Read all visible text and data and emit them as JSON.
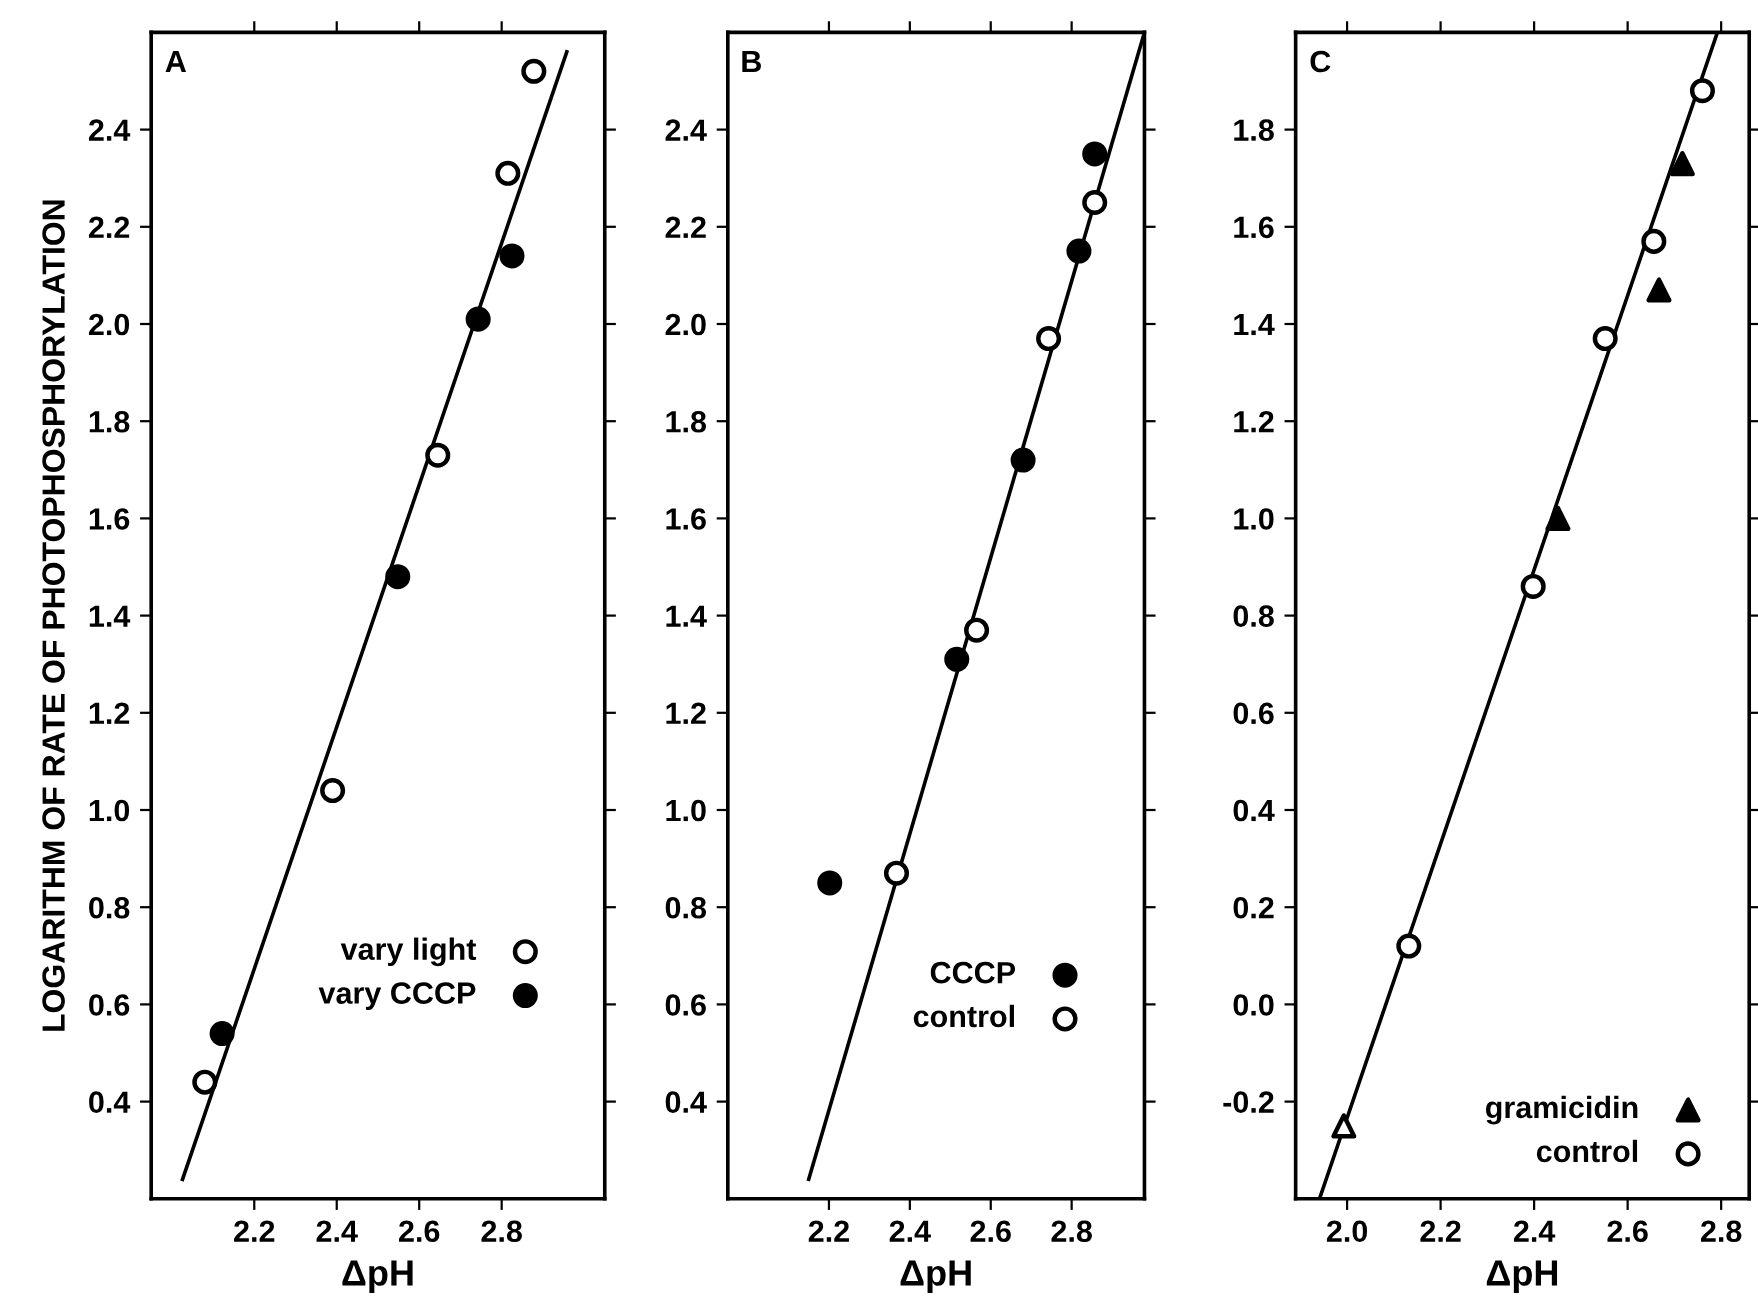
{
  "chart_data": [
    {
      "type": "scatter",
      "title": "A",
      "xlabel": "ΔpH",
      "ylabel": "LOGARITHM OF RATE OF PHOTOPHOSPHORYLATION",
      "xlim": [
        1.95,
        3.05
      ],
      "ylim": [
        0.2,
        2.6
      ],
      "xticks": [
        2.2,
        2.4,
        2.6,
        2.8
      ],
      "yticks": [
        0.4,
        0.6,
        0.8,
        {
          "value": 1.0,
          "label": "1.0"
        },
        1.2,
        1.4,
        1.6,
        1.8,
        {
          "value": 2.0,
          "label": "2.0"
        },
        2.2,
        2.4
      ],
      "legend": "bottom right",
      "grid": false,
      "series": [
        {
          "name": "vary light",
          "color": "#ffffff",
          "marker": "circle",
          "x": [
            2.08,
            2.39,
            2.645,
            2.815,
            2.878
          ],
          "values": [
            0.44,
            1.04,
            1.73,
            2.31,
            2.52
          ]
        },
        {
          "name": "vary CCCP",
          "color": "#000000",
          "marker": "circle",
          "x": [
            2.122,
            2.548,
            2.743,
            2.825
          ],
          "values": [
            0.54,
            1.48,
            2.01,
            2.14
          ]
        },
        {
          "type": "line",
          "color": "#000000",
          "marker": "none",
          "line_style": "solid",
          "x": [
            2.026,
            2.958
          ],
          "values": [
            0.24,
            2.56
          ]
        }
      ]
    },
    {
      "type": "scatter",
      "title": "B",
      "xlabel": "ΔpH",
      "xlim": [
        1.95,
        2.98
      ],
      "ylim": [
        0.2,
        2.6
      ],
      "xticks": [
        2.2,
        2.4,
        2.6,
        2.8
      ],
      "yticks": [
        0.4,
        0.6,
        0.8,
        {
          "value": 1.0,
          "label": "1.0"
        },
        1.2,
        1.4,
        1.6,
        1.8,
        {
          "value": 2.0,
          "label": "2.0"
        },
        2.2,
        2.4
      ],
      "legend": "bottom right",
      "grid": false,
      "series": [
        {
          "name": "CCCP",
          "color": "#000000",
          "marker": "circle",
          "x": [
            2.202,
            2.516,
            2.68,
            2.818,
            2.857
          ],
          "values": [
            0.85,
            1.31,
            1.72,
            2.15,
            2.35
          ]
        },
        {
          "name": "control",
          "color": "#ffffff",
          "marker": "circle",
          "x": [
            2.367,
            2.565,
            2.743,
            2.857
          ],
          "values": [
            0.87,
            1.37,
            1.97,
            2.25
          ]
        },
        {
          "type": "line",
          "color": "#000000",
          "marker": "none",
          "line_style": "solid",
          "x": [
            2.15,
            2.98
          ],
          "values": [
            0.24,
            2.6
          ]
        }
      ]
    },
    {
      "type": "scatter",
      "title": "C",
      "xlabel": "ΔpH",
      "xlim": [
        1.89,
        2.86
      ],
      "ylim": [
        -0.4,
        2.0
      ],
      "xticks": [
        {
          "value": 2.0,
          "label": "2.0"
        },
        2.2,
        2.4,
        2.6,
        2.8
      ],
      "yticks": [
        -0.2,
        {
          "value": 0.0,
          "label": "0.0"
        },
        0.2,
        0.4,
        0.6,
        0.8,
        {
          "value": 1.0,
          "label": "1.0"
        },
        1.2,
        1.4,
        1.6,
        1.8
      ],
      "legend": "bottom right",
      "grid": false,
      "series": [
        {
          "name": "gramicidin",
          "color": "#000000",
          "marker": "triangle",
          "x": [
            2.451,
            2.667,
            2.717
          ],
          "values": [
            1.0,
            1.47,
            1.73
          ]
        },
        {
          "name": "control",
          "color": "#ffffff",
          "marker": "circle",
          "x": [
            2.132,
            2.398,
            2.552,
            2.656,
            2.76
          ],
          "values": [
            0.12,
            0.86,
            1.37,
            1.57,
            1.88
          ]
        },
        {
          "color": "#ffffff",
          "marker": "triangle",
          "x": [
            1.993
          ],
          "values": [
            -0.25
          ]
        },
        {
          "type": "line",
          "color": "#000000",
          "marker": "none",
          "line_style": "solid",
          "x": [
            1.941,
            2.792
          ],
          "values": [
            -0.4,
            2.0
          ]
        }
      ]
    }
  ]
}
